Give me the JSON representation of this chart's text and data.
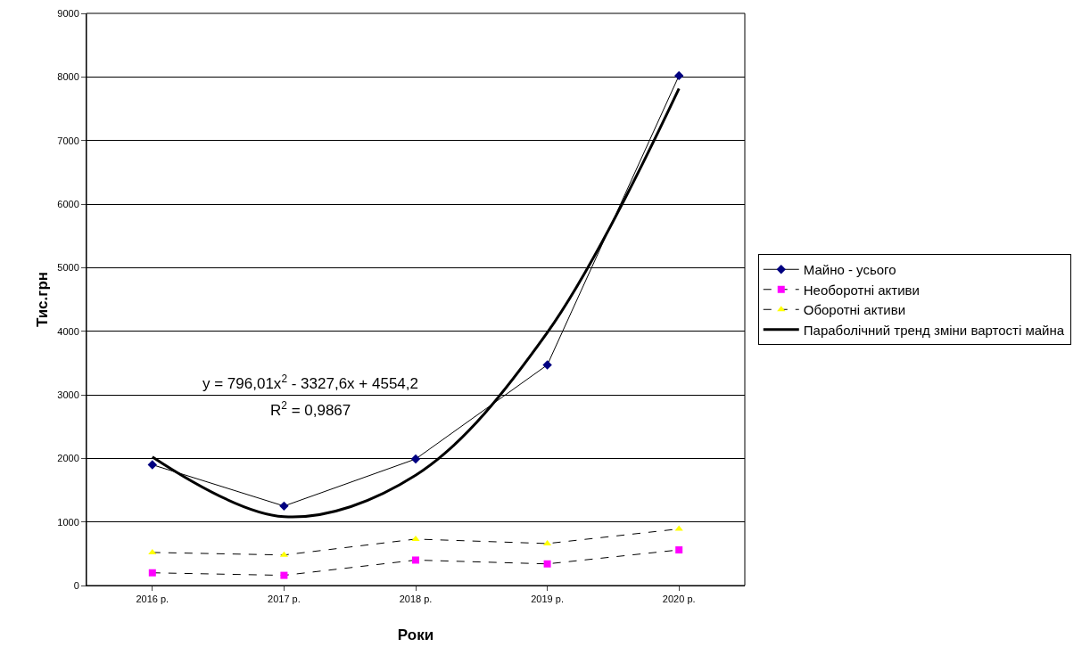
{
  "chart_data": {
    "type": "line",
    "xlabel": "Роки",
    "ylabel": "Тис.грн",
    "categories": [
      "2016 р.",
      "2017 р.",
      "2018 р.",
      "2019 р.",
      "2020 р."
    ],
    "series": [
      {
        "name": "Майно - усього",
        "color": "#000080",
        "marker": "diamond",
        "line_style": "solid",
        "values": [
          1900,
          1250,
          1990,
          3470,
          8020
        ]
      },
      {
        "name": "Необоротні активи",
        "color": "#ff00ff",
        "marker": "square",
        "line_style": "dashed",
        "values": [
          200,
          160,
          400,
          340,
          560
        ]
      },
      {
        "name": "Оборотні активи",
        "color": "#ffff00",
        "marker": "triangle",
        "line_style": "dashed",
        "values": [
          520,
          480,
          730,
          660,
          890
        ]
      },
      {
        "name": "Параболічний тренд зміни вартості майна",
        "color": "#000000",
        "marker": "none",
        "line_style": "solid",
        "values": [
          2023,
          1083,
          1735,
          3980,
          7816
        ]
      }
    ],
    "ylim": [
      0,
      9000
    ],
    "yticks": [
      0,
      1000,
      2000,
      3000,
      4000,
      5000,
      6000,
      7000,
      8000,
      9000
    ],
    "grid": "y",
    "legend": "right",
    "annotations": [
      "y = 796,01x$^{2}$ - 3327,6x + 4554,2",
      "R$^{2}$ = 0,9867"
    ]
  }
}
